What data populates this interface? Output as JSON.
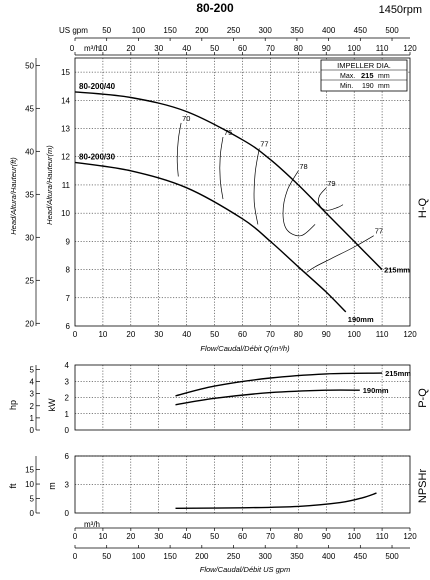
{
  "header": {
    "model": "80-200",
    "speed": "1450rpm"
  },
  "chart_data": [
    {
      "type": "line",
      "name": "H-Q",
      "side_label": "H-Q",
      "xlabel": "Flow/Caudal/Débit Q(m³/h)",
      "ylabel": "Head/Altura/Hauteur(m)",
      "ylabel_ft": "Head/Altura/Hauteur(ft)",
      "top_axis_gpm_label": "US gpm",
      "top_axis_m3h_label": "m³/h",
      "xlim": [
        0,
        120
      ],
      "ylim": [
        6,
        15.5
      ],
      "x_ticks": [
        0,
        10,
        20,
        30,
        40,
        50,
        60,
        70,
        80,
        90,
        100,
        110,
        120
      ],
      "y_ticks": [
        6,
        7,
        8,
        9,
        10,
        11,
        12,
        13,
        14,
        15
      ],
      "ft_ticks": [
        20,
        25,
        30,
        35,
        40,
        45,
        50
      ],
      "gpm_ticks": [
        0,
        50,
        100,
        150,
        200,
        250,
        300,
        350,
        400,
        450,
        500
      ],
      "series": [
        {
          "name": "215mm",
          "label": "80-200/40",
          "x": [
            0,
            20,
            40,
            60,
            70,
            80,
            90,
            100,
            110
          ],
          "y": [
            14.3,
            14.1,
            13.6,
            12.6,
            11.9,
            11.0,
            10.0,
            9.0,
            8.0
          ]
        },
        {
          "name": "190mm",
          "label": "80-200/30",
          "x": [
            0,
            20,
            40,
            60,
            70,
            80,
            90,
            97
          ],
          "y": [
            11.8,
            11.5,
            10.9,
            9.8,
            9.0,
            8.1,
            7.2,
            6.5
          ]
        }
      ],
      "efficiency_curves": [
        {
          "label": "70",
          "points": [
            [
              38,
              13.2
            ],
            [
              37,
              12.6
            ],
            [
              36.6,
              11.9
            ],
            [
              37,
              11.3
            ]
          ]
        },
        {
          "label": "75",
          "points": [
            [
              53,
              12.7
            ],
            [
              52,
              12.0
            ],
            [
              52,
              11.2
            ],
            [
              53,
              10.5
            ]
          ]
        },
        {
          "label": "77",
          "points": [
            [
              66,
              12.3
            ],
            [
              64.5,
              11.4
            ],
            [
              64.2,
              10.4
            ],
            [
              65.5,
              9.6
            ]
          ]
        },
        {
          "label": "78",
          "points": [
            [
              80,
              11.5
            ],
            [
              76,
              10.8
            ],
            [
              74.5,
              10.0
            ],
            [
              76,
              9.4
            ],
            [
              81,
              9.2
            ],
            [
              86,
              9.6
            ]
          ]
        },
        {
          "label": "79",
          "points": [
            [
              90,
              10.9
            ],
            [
              87.5,
              10.6
            ],
            [
              87.5,
              10.3
            ],
            [
              90,
              10.1
            ],
            [
              94,
              10.2
            ],
            [
              96,
              10.3
            ]
          ]
        },
        {
          "label": "77",
          "points": [
            [
              107,
              9.2
            ],
            [
              100,
              8.8
            ],
            [
              92,
              8.4
            ],
            [
              86,
              8.1
            ],
            [
              83,
              7.9
            ]
          ]
        }
      ],
      "impeller_box": {
        "title": "IMPELLER DIA.",
        "max_label": "Max.",
        "max_value": "215",
        "min_label": "Min.",
        "min_value": "190",
        "unit": "mm"
      }
    },
    {
      "type": "line",
      "name": "P-Q",
      "side_label": "P-Q",
      "ylabel_kw": "kW",
      "ylabel_hp": "hp",
      "xlim": [
        0,
        120
      ],
      "ylim": [
        0,
        4
      ],
      "y_ticks": [
        0,
        1,
        2,
        3,
        4
      ],
      "hp_ticks": [
        0,
        1,
        2,
        3,
        4,
        5
      ],
      "series": [
        {
          "name": "215mm",
          "x": [
            36,
            50,
            70,
            90,
            110
          ],
          "y": [
            2.1,
            2.7,
            3.2,
            3.45,
            3.5
          ]
        },
        {
          "name": "190mm",
          "x": [
            36,
            50,
            70,
            90,
            102
          ],
          "y": [
            1.55,
            1.95,
            2.3,
            2.45,
            2.45
          ]
        }
      ]
    },
    {
      "type": "line",
      "name": "NPSHr",
      "side_label": "NPSHr",
      "ylabel_m": "m",
      "ylabel_ft": "ft",
      "xlim": [
        0,
        120
      ],
      "ylim": [
        0,
        6
      ],
      "y_ticks": [
        0,
        3,
        6
      ],
      "ft_ticks": [
        0,
        5,
        10,
        15
      ],
      "series": [
        {
          "name": "NPSHr",
          "x": [
            36,
            60,
            80,
            95,
            103,
            108
          ],
          "y": [
            0.5,
            0.55,
            0.7,
            1.1,
            1.6,
            2.1
          ]
        }
      ]
    }
  ],
  "footer": {
    "bottom_xlabel": "Flow/Caudal/Débit  US gpm",
    "bottom_m3h_label": "m³/h",
    "x_ticks": [
      0,
      10,
      20,
      30,
      40,
      50,
      60,
      70,
      80,
      90,
      100,
      110,
      120
    ],
    "gpm_ticks": [
      0,
      50,
      100,
      150,
      200,
      250,
      300,
      350,
      400,
      450,
      500
    ]
  }
}
